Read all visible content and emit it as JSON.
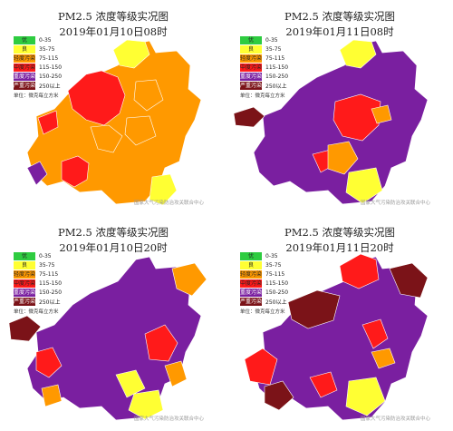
{
  "legend": {
    "entries": [
      {
        "label": "优",
        "range": "0-35",
        "color": "#2ecc40"
      },
      {
        "label": "良",
        "range": "35-75",
        "color": "#ffff33"
      },
      {
        "label": "轻度污染",
        "range": "75-115",
        "color": "#ff9900"
      },
      {
        "label": "中度污染",
        "range": "115-150",
        "color": "#ff1a1a"
      },
      {
        "label": "重度污染",
        "range": "150-250",
        "color": "#7a1fa0"
      },
      {
        "label": "严重污染",
        "range": "250以上",
        "color": "#7b1318"
      }
    ],
    "unit": "单位：微克每立方米"
  },
  "watermark": "国家大气污染防治攻关联合中心",
  "panels": [
    {
      "title": "PM2.5 浓度等级实况图",
      "time": "2019年01月10日08时"
    },
    {
      "title": "PM2.5 浓度等级实况图",
      "time": "2019年01月11日08时"
    },
    {
      "title": "PM2.5 浓度等级实况图",
      "time": "2019年01月10日20时"
    },
    {
      "title": "PM2.5 浓度等级实况图",
      "time": "2019年01月11日20时"
    }
  ]
}
